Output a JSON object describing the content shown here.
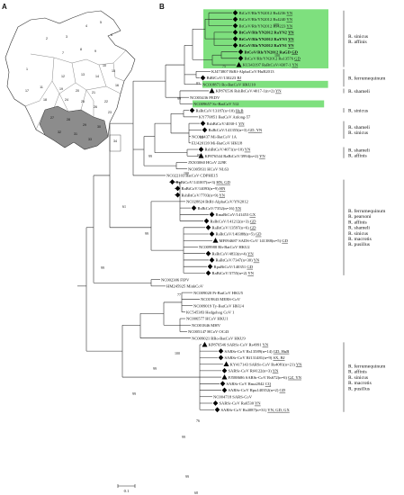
{
  "panels": {
    "a": "A",
    "b": "B"
  },
  "scale_label": "0.1",
  "map": {
    "province_numbers": [
      "1",
      "2",
      "3",
      "4",
      "5",
      "6",
      "7",
      "8",
      "9",
      "10",
      "11",
      "12",
      "13",
      "14",
      "15",
      "16",
      "17",
      "18",
      "19",
      "20",
      "21",
      "22",
      "23",
      "24",
      "25",
      "26",
      "27",
      "28",
      "29",
      "30",
      "31",
      "32",
      "33",
      "34"
    ],
    "colors": {
      "land": "#ffffff",
      "highlight": "#8c8c8c",
      "border": "#333333"
    }
  },
  "colors": {
    "highlight_box": "#7ee07e",
    "branch": "#222222"
  },
  "taxa": [
    {
      "label": "BtCoV/Rh/YN2012 Rs4236",
      "tag": "YN",
      "marker": "diamond",
      "bold": false
    },
    {
      "label": "BtCoV/Rh/YN2012 Rs4240",
      "tag": "YN",
      "marker": "diamond",
      "bold": false
    },
    {
      "label": "BtCoV/Rh/YN2012 Rs4223",
      "tag": "YN",
      "marker": "diamond",
      "bold": false
    },
    {
      "label": "BtCoV/Rh/YN2012 RaYN2",
      "tag": "YN",
      "marker": "diamond",
      "bold": true
    },
    {
      "label": "BtCoV/Rh/YN2012 RaYN3",
      "tag": "YN",
      "marker": "diamond",
      "bold": true
    },
    {
      "label": "BtCoV/Rh/YN2012 RaYN1",
      "tag": "YN",
      "marker": "diamond",
      "bold": true
    },
    {
      "label": "BtCoV/Rh/YN2012 RaGD",
      "tag": "GD",
      "marker": "diamond",
      "bold": true
    },
    {
      "label": "BtCoV/Rh/YN2012 Ra13576",
      "tag": "GD",
      "marker": "diamond",
      "bold": false
    },
    {
      "label": "KU343197 RaBtCoV/4307-1",
      "tag": "YN",
      "marker": "triangle",
      "bold": false
    },
    {
      "label": "KJ473807 BtRf-AlphaCoV/HuB2013",
      "tag": "",
      "marker": "none",
      "bold": false
    },
    {
      "label": "BtRfCoV/130223",
      "tag": "BJ",
      "marker": "diamond",
      "bold": false
    },
    {
      "label": "NC018871 Ro-BatCoV HKU10",
      "tag": "",
      "marker": "none",
      "bold": false
    },
    {
      "label": "KP876536 RshBtCoV/4017-1(n=2)",
      "tag": "YN",
      "marker": "triangle",
      "bold": false
    },
    {
      "label": "NC003436 PEDV",
      "tag": "",
      "marker": "none",
      "bold": false
    },
    {
      "label": "NC009657 Sc-BatCoV 512",
      "tag": "",
      "marker": "none",
      "bold": false
    },
    {
      "label": "RsBtCoV/13187(n=10)",
      "tag": "HuB",
      "marker": "diamond",
      "bold": false
    },
    {
      "label": "KY770851 BatCoV Anlong-57",
      "tag": "",
      "marker": "none",
      "bold": false
    },
    {
      "label": "RshBtCoV/4030-1",
      "tag": "YN",
      "marker": "diamond",
      "bold": false
    },
    {
      "label": "RsBtCoV/141355(n=3)",
      "tag": "GD, YN",
      "marker": "diamond",
      "bold": false
    },
    {
      "label": "NC010437 Mi-BatCoV 1A",
      "tag": "",
      "marker": "none",
      "bold": false
    },
    {
      "label": "EU420139 Mi-BatCoV HKU8",
      "tag": "",
      "marker": "none",
      "bold": false
    },
    {
      "label": "RshBtCoV/4071(n=10)",
      "tag": "YN",
      "marker": "diamond",
      "bold": false
    },
    {
      "label": "KP876544 RaBtCoV/3994(n=2)",
      "tag": "YN",
      "marker": "triangle",
      "bold": false
    },
    {
      "label": "JX503060 HCoV 229E",
      "tag": "",
      "marker": "none",
      "bold": false
    },
    {
      "label": "NC005831 HCoV NL63",
      "tag": "",
      "marker": "none",
      "bold": false
    },
    {
      "label": "NC022103 BatCoV CDPHE15",
      "tag": "",
      "marker": "none",
      "bold": false
    },
    {
      "label": "RpBtCoV/141007(n=3)",
      "tag": "HN, GD",
      "marker": "diamond",
      "bold": false
    },
    {
      "label": "RaBtCoV/14093(n=9)",
      "tag": "HN",
      "marker": "diamond",
      "bold": false
    },
    {
      "label": "RshBtCoV/7703(n=9)",
      "tag": "YN",
      "marker": "diamond",
      "bold": false
    },
    {
      "label": "NC028824 BtRf-AlphaCoV/YN2012",
      "tag": "",
      "marker": "none",
      "bold": false
    },
    {
      "label": "RsBtCoV/7352(n=16)",
      "tag": "YN",
      "marker": "diamond",
      "bold": false
    },
    {
      "label": "RmaBtCoV/141453",
      "tag": "GX",
      "marker": "diamond",
      "bold": false
    },
    {
      "label": "RsBtCoV/141212(n=3)",
      "tag": "GD",
      "marker": "diamond",
      "bold": false
    },
    {
      "label": "RaBtCoV/13597(n=6)",
      "tag": "GD",
      "marker": "diamond",
      "bold": false
    },
    {
      "label": "RsBtCoV/140388(n=5)",
      "tag": "GD",
      "marker": "diamond",
      "bold": false
    },
    {
      "label": "MF094687 SADS-CoV 141388(n=5)",
      "tag": "GD",
      "marker": "triangle",
      "bold": false
    },
    {
      "label": "NC009988 Rh-BatCoV HKU2",
      "tag": "",
      "marker": "none",
      "bold": false
    },
    {
      "label": "RsBtCoV/4833(n=4)",
      "tag": "YN",
      "marker": "diamond",
      "bold": false
    },
    {
      "label": "RaBtCoV/7347(n=30)",
      "tag": "YN",
      "marker": "diamond",
      "bold": false
    },
    {
      "label": "RpuBtCoV/140351",
      "tag": "GD",
      "marker": "diamond",
      "bold": false
    },
    {
      "label": "RaBtCoV/3755(n=2)",
      "tag": "YN",
      "marker": "diamond",
      "bold": false
    },
    {
      "label": "NC002306 FIPV",
      "tag": "",
      "marker": "none",
      "bold": false
    },
    {
      "label": "HM245925 MinkCoV",
      "tag": "",
      "marker": "none",
      "bold": false
    },
    {
      "label": "NC009020 Pi-BatCoV HKU5",
      "tag": "",
      "marker": "none",
      "bold": false
    },
    {
      "label": "NC019843 MERS-CoV",
      "tag": "",
      "marker": "none",
      "bold": false
    },
    {
      "label": "NC009019 Ty-BatCoV HKU4",
      "tag": "",
      "marker": "none",
      "bold": false
    },
    {
      "label": "KC545383 Hedgehog CoV 1",
      "tag": "",
      "marker": "none",
      "bold": false
    },
    {
      "label": "NC006577 HCoV HKU1",
      "tag": "",
      "marker": "none",
      "bold": false
    },
    {
      "label": "NC001846 MHV",
      "tag": "",
      "marker": "none",
      "bold": false
    },
    {
      "label": "NC005147 HCoV OC43",
      "tag": "",
      "marker": "none",
      "bold": false
    },
    {
      "label": "NC009021 RRo-BatCoV HKU9",
      "tag": "",
      "marker": "none",
      "bold": false
    },
    {
      "label": "KP876546 SARSr-CoV Rs4991",
      "tag": "YN",
      "marker": "triangle",
      "bold": false
    },
    {
      "label": "SARSr-CoV Rs13589(n=14)",
      "tag": "GD, HuB",
      "marker": "diamond",
      "bold": false
    },
    {
      "label": "SARSr-CoV Rf131481(n=9)",
      "tag": "SX, BJ",
      "marker": "diamond",
      "bold": false
    },
    {
      "label": "KY417143 SARSr-CoV Rs4081(n=21)",
      "tag": "YN",
      "marker": "triangle",
      "bold": false
    },
    {
      "label": "SARSr-CoV Rf4122(n=3)",
      "tag": "YN",
      "marker": "diamond",
      "bold": false
    },
    {
      "label": "FJ588686 SARSr-CoV Rs672(n=6)",
      "tag": "GZ, YN",
      "marker": "triangle",
      "bold": false
    },
    {
      "label": "SARSr-CoV Rma2842",
      "tag": "CQ",
      "marker": "diamond",
      "bold": false
    },
    {
      "label": "SARSr-CoV Rpu140352(n=2)",
      "tag": "GD",
      "marker": "diamond",
      "bold": false
    },
    {
      "label": "NC004718 SARS-CoV",
      "tag": "",
      "marker": "none",
      "bold": false
    },
    {
      "label": "SARSr-CoV Ra6530",
      "tag": "YN",
      "marker": "diamond",
      "bold": false
    },
    {
      "label": "SARSr-CoV Rs4087(n=31)",
      "tag": "YN, GD, GX",
      "marker": "diamond",
      "bold": false
    }
  ],
  "supports": [
    {
      "text": "100",
      "node": [
        315,
        30
      ]
    },
    {
      "text": "100",
      "node": [
        316,
        64
      ]
    },
    {
      "text": "75",
      "node": [
        258,
        76
      ]
    },
    {
      "text": "83",
      "node": [
        229,
        95
      ]
    },
    {
      "text": "99",
      "node": [
        208,
        112
      ]
    },
    {
      "text": "93",
      "node": [
        233,
        155
      ]
    },
    {
      "text": "98",
      "node": [
        230,
        175
      ]
    },
    {
      "text": "99",
      "node": [
        176,
        176
      ]
    },
    {
      "text": "100",
      "node": [
        215,
        195
      ]
    },
    {
      "text": "61",
      "node": [
        147,
        232
      ]
    },
    {
      "text": "99",
      "node": [
        172,
        262
      ]
    },
    {
      "text": "77",
      "node": [
        208,
        330
      ]
    },
    {
      "text": "99",
      "node": [
        123,
        300
      ]
    },
    {
      "text": "100",
      "node": [
        205,
        395
      ]
    },
    {
      "text": "99",
      "node": [
        181,
        412
      ]
    },
    {
      "text": "99",
      "node": [
        158,
        440
      ]
    },
    {
      "text": "76",
      "node": [
        229,
        470
      ]
    },
    {
      "text": "99",
      "node": [
        213,
        488
      ]
    },
    {
      "text": "99",
      "node": [
        217,
        532
      ]
    },
    {
      "text": "68",
      "node": [
        227,
        550
      ]
    }
  ],
  "hosts": [
    {
      "lines": [
        "R. sinicus",
        "R. affinis"
      ]
    },
    {
      "lines": [
        "R. ferrumequinum"
      ]
    },
    {
      "lines": [
        "R. shameli"
      ]
    },
    {
      "lines": [
        "R. sinicus"
      ]
    },
    {
      "lines": [
        "R. shameli",
        "R. sinicus"
      ]
    },
    {
      "lines": [
        "R. shameli",
        "R. affinis"
      ]
    },
    {
      "lines": [
        "R. ferrumequinum",
        "R. pearsoni",
        "R. affinis",
        "R. shameli",
        "R. sinicus",
        "R. macrotis",
        "R. pusillus"
      ]
    },
    {
      "lines": [
        "R. ferrumequinum",
        "R. affinis",
        "R. sinicus",
        "R. macrotis",
        "R. pusillus"
      ]
    }
  ]
}
